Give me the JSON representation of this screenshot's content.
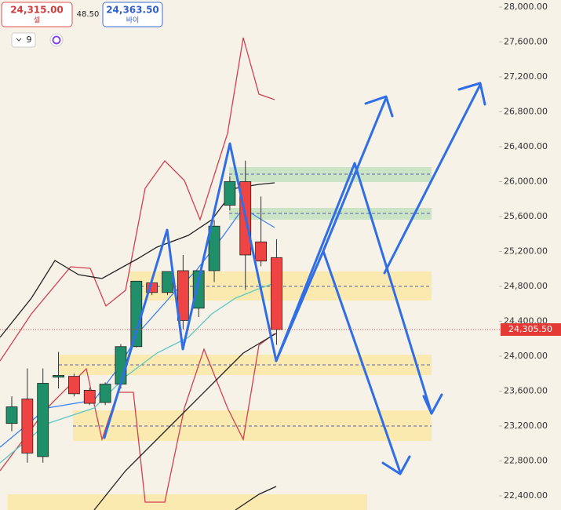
{
  "chart_data": {
    "type": "candlestick",
    "sell": {
      "price": "24,315.00",
      "label": "셀"
    },
    "spread": "48.50",
    "buy": {
      "price": "24,363.50",
      "label": "바이"
    },
    "interval": "9",
    "up_color": "#1f8f6a",
    "down_color": "#ef4444",
    "open": [
      23230,
      23510,
      22850,
      23760,
      23770,
      23610,
      23470,
      23680,
      24110,
      24840,
      24730,
      24980,
      24550,
      24980,
      25730,
      26000,
      25310,
      25130
    ],
    "high": [
      23540,
      23860,
      23860,
      24050,
      23800,
      23640,
      23700,
      24140,
      24860,
      24870,
      24970,
      25160,
      24980,
      25560,
      26060,
      26240,
      25830,
      25340
    ],
    "low": [
      23140,
      22780,
      22780,
      23630,
      23540,
      23440,
      23440,
      23630,
      24100,
      24700,
      24700,
      24310,
      24450,
      24850,
      25670,
      24760,
      25030,
      24130
    ],
    "close": [
      23420,
      22890,
      23690,
      23780,
      23570,
      23460,
      23680,
      24110,
      24860,
      24730,
      24970,
      24410,
      24980,
      25490,
      26000,
      25160,
      25090,
      24305.5
    ],
    "current_price": {
      "value": 24305.5,
      "label": "24,305.50"
    },
    "ylim": [
      22290,
      28050
    ],
    "yticks": [
      {
        "value": 28000,
        "label": "28,000.00"
      },
      {
        "value": 27600,
        "label": "27,600.00"
      },
      {
        "value": 27200,
        "label": "27,200.00"
      },
      {
        "value": 26800,
        "label": "26,800.00"
      },
      {
        "value": 26400,
        "label": "26,400.00"
      },
      {
        "value": 26000,
        "label": "26,000.00"
      },
      {
        "value": 25600,
        "label": "25,600.00"
      },
      {
        "value": 25200,
        "label": "25,200.00"
      },
      {
        "value": 24800,
        "label": "24,800.00"
      },
      {
        "value": 24400,
        "label": "24,400.00"
      },
      {
        "value": 24000,
        "label": "24,000.00"
      },
      {
        "value": 23600,
        "label": "23,600.00"
      },
      {
        "value": 23200,
        "label": "23,200.00"
      },
      {
        "value": 22800,
        "label": "22,800.00"
      },
      {
        "value": 22400,
        "label": "22,400.00"
      }
    ]
  }
}
